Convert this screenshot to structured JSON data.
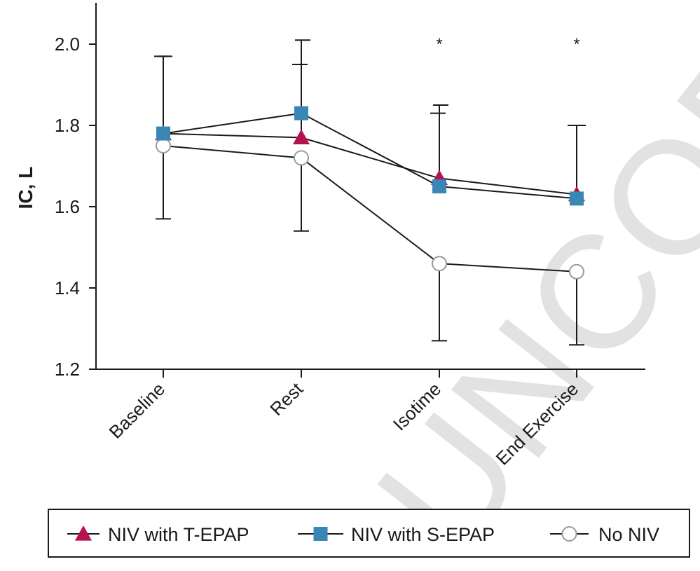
{
  "chart_data": {
    "type": "line",
    "ylabel": "IC, L",
    "xlabel": "",
    "ylim": [
      1.2,
      2.1
    ],
    "yticks": [
      1.2,
      1.4,
      1.6,
      1.8,
      2.0
    ],
    "ytick_labels": [
      "1.2",
      "1.4",
      "1.6",
      "1.8",
      "2.0"
    ],
    "categories": [
      "Baseline",
      "Rest",
      "Isotime",
      "End Exercise"
    ],
    "series": [
      {
        "name": "NIV with T-EPAP",
        "marker": "triangle",
        "color": "#b5124f",
        "values": [
          1.78,
          1.77,
          1.67,
          1.63
        ],
        "error_upper": [
          1.97,
          1.95,
          1.83,
          1.8
        ],
        "error_lower": [
          null,
          null,
          null,
          null
        ]
      },
      {
        "name": "NIV with S-EPAP",
        "marker": "square",
        "color": "#3a86b4",
        "values": [
          1.78,
          1.83,
          1.65,
          1.62
        ],
        "error_upper": [
          1.97,
          2.01,
          1.85,
          1.8
        ],
        "error_lower": [
          null,
          null,
          null,
          null
        ]
      },
      {
        "name": "No NIV",
        "marker": "circle-open",
        "color": "#9a9a9a",
        "values": [
          1.75,
          1.72,
          1.46,
          1.44
        ],
        "error_upper": [
          null,
          null,
          null,
          null
        ],
        "error_lower": [
          1.57,
          1.54,
          1.27,
          1.26
        ]
      }
    ],
    "annotations": [
      {
        "category": "Isotime",
        "text": "*",
        "y": 2.0
      },
      {
        "category": "End Exercise",
        "text": "*",
        "y": 2.0
      }
    ],
    "legend": [
      "NIV with T-EPAP",
      "NIV with S-EPAP",
      "No NIV"
    ],
    "legend_position": "bottom",
    "grid": false,
    "watermark": "UNCORR"
  }
}
